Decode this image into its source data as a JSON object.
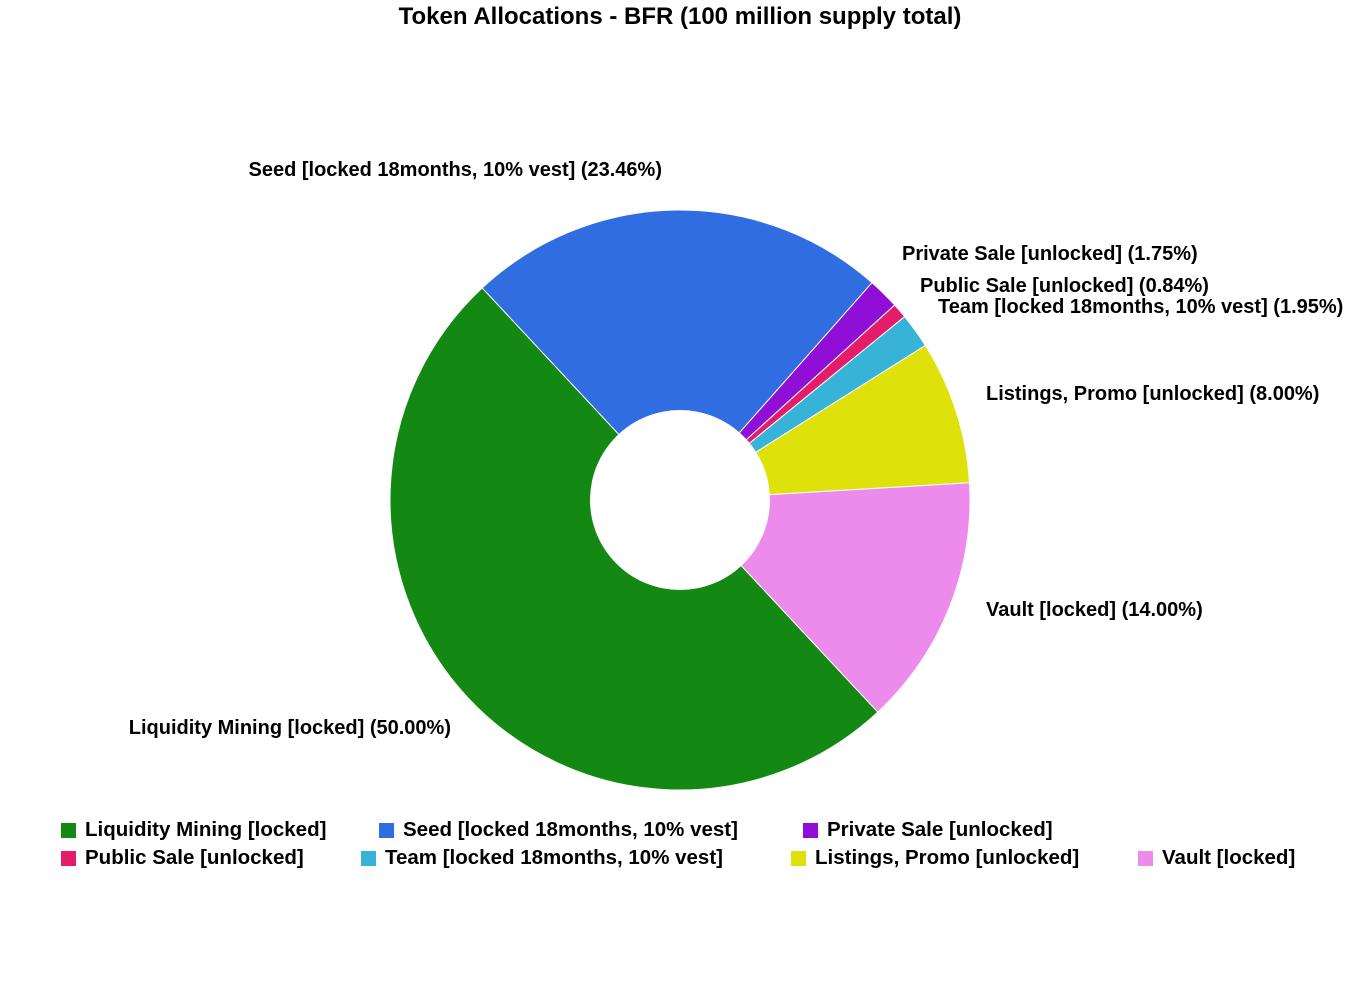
{
  "chart_data": {
    "type": "pie",
    "donut": true,
    "title": "Token Allocations - BFR (100 million supply total)",
    "categories": [
      "Liquidity Mining [locked]",
      "Seed [locked 18months, 10% vest]",
      "Private Sale [unlocked]",
      "Public Sale [unlocked]",
      "Team [locked 18months, 10% vest]",
      "Listings, Promo [unlocked]",
      "Vault [locked]"
    ],
    "values": [
      50.0,
      23.46,
      1.75,
      0.84,
      1.95,
      8.0,
      14.0
    ],
    "slice_labels": [
      "Liquidity Mining [locked] (50.00%)",
      "Seed [locked 18months, 10% vest] (23.46%)",
      "Private Sale [unlocked] (1.75%)",
      "Public Sale [unlocked] (0.84%)",
      "Team [locked 18months, 10% vest] (1.95%)",
      "Listings, Promo [unlocked] (8.00%)",
      "Vault [locked] (14.00%)"
    ],
    "colors": [
      "#138812",
      "#2f6de0",
      "#8f0fd6",
      "#e41c6a",
      "#37b3d8",
      "#dee10a",
      "#ec8beb"
    ],
    "legend_position": "bottom"
  }
}
